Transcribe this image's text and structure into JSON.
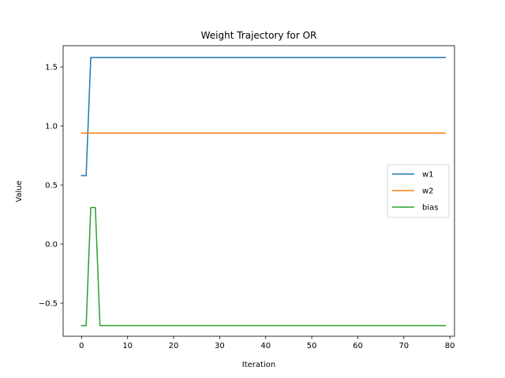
{
  "chart_data": {
    "type": "line",
    "title": "Weight Trajectory for OR",
    "xlabel": "Iteration",
    "ylabel": "Value",
    "xlim": [
      -4,
      81
    ],
    "ylim": [
      -0.78,
      1.68
    ],
    "xticks": [
      0,
      10,
      20,
      30,
      40,
      50,
      60,
      70,
      80
    ],
    "yticks": [
      -0.5,
      0.0,
      0.5,
      1.0,
      1.5
    ],
    "ytick_labels": [
      "−0.5",
      "0.0",
      "0.5",
      "1.0",
      "1.5"
    ],
    "grid": false,
    "legend": {
      "position": "center-right"
    },
    "series": [
      {
        "name": "w1",
        "color": "#1f77b4",
        "points": [
          [
            0,
            0.58
          ],
          [
            1,
            0.58
          ],
          [
            2,
            1.58
          ],
          [
            79,
            1.58
          ]
        ]
      },
      {
        "name": "w2",
        "color": "#ff7f0e",
        "points": [
          [
            0,
            0.94
          ],
          [
            79,
            0.94
          ]
        ]
      },
      {
        "name": "bias",
        "color": "#2ca02c",
        "points": [
          [
            0,
            -0.69
          ],
          [
            1,
            -0.69
          ],
          [
            2,
            0.31
          ],
          [
            3,
            0.31
          ],
          [
            4,
            -0.69
          ],
          [
            79,
            -0.69
          ]
        ]
      }
    ]
  }
}
